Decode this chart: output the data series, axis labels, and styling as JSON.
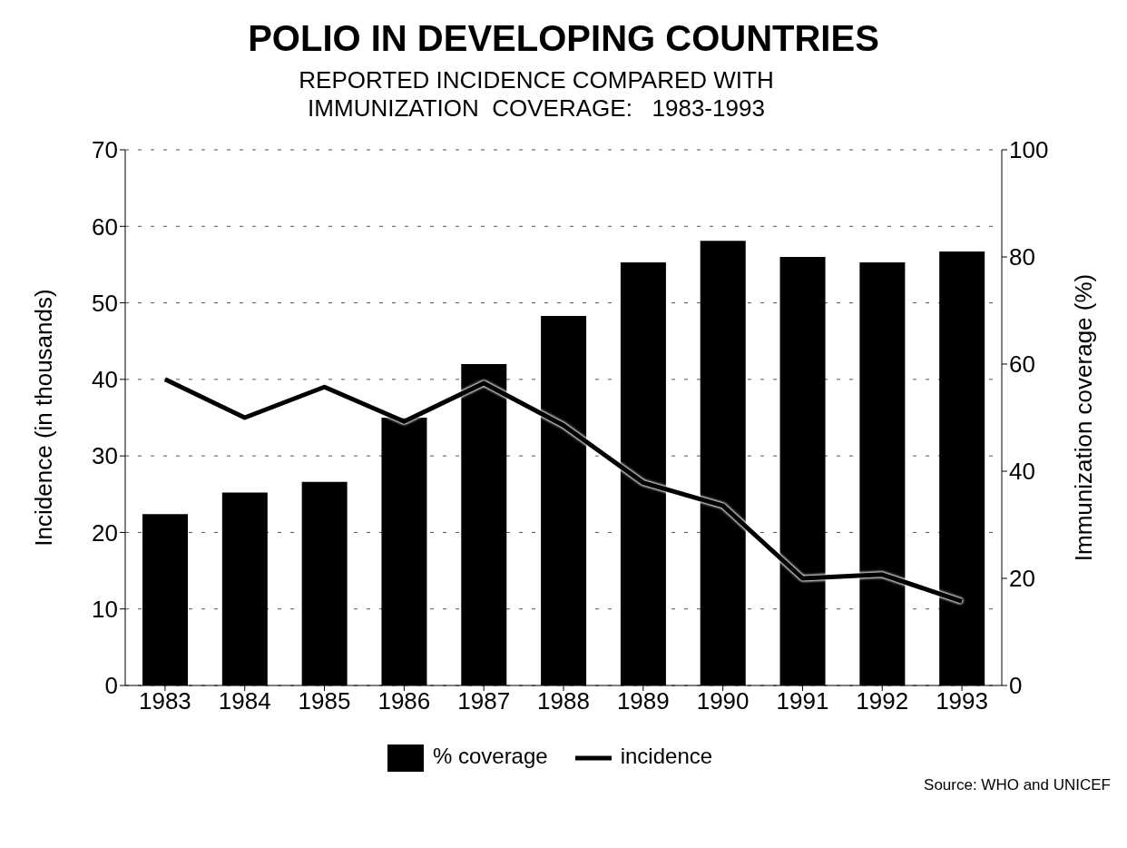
{
  "chart_data": {
    "type": "bar",
    "title": "POLIO IN DEVELOPING COUNTRIES",
    "subtitle": "REPORTED INCIDENCE COMPARED WITH\nIMMUNIZATION  COVERAGE:   1983-1993",
    "ylabel": "Incidence (in thousands)",
    "y2label": "Immunization coverage (%)",
    "categories": [
      "1983",
      "1984",
      "1985",
      "1986",
      "1987",
      "1988",
      "1989",
      "1990",
      "1991",
      "1992",
      "1993"
    ],
    "series": [
      {
        "name": "% coverage",
        "axis": "y2",
        "color": "#000000",
        "values": [
          32,
          36,
          38,
          50,
          60,
          69,
          79,
          83,
          80,
          79,
          81
        ]
      },
      {
        "name": "incidence",
        "type": "line",
        "color": "#000000",
        "values": [
          40,
          35,
          39,
          34.5,
          39.5,
          34,
          26.5,
          23.5,
          14,
          14.5,
          11
        ]
      }
    ],
    "ylim": [
      0,
      70
    ],
    "yticks": [
      0,
      10,
      20,
      30,
      40,
      50,
      60,
      70
    ],
    "y2lim": [
      0,
      100
    ],
    "y2ticks": [
      0,
      20,
      40,
      60,
      80,
      100
    ],
    "grid": "y",
    "legend": "bottom",
    "marker": "none",
    "line_style": "solid",
    "annotations": [
      "Source: WHO and UNICEF"
    ]
  }
}
